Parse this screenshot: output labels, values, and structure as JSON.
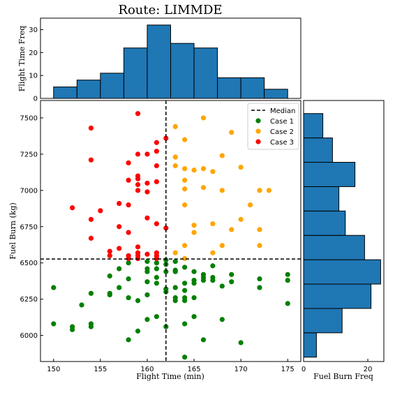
{
  "chart_data": {
    "type": "scatter",
    "title": "Route: LIMMDE",
    "xlabel": "Flight Time (min)",
    "ylabel": "Fuel Burn (kg)",
    "xlim": [
      148.6,
      176.4
    ],
    "ylim": [
      5820,
      7620
    ],
    "xticks": [
      150,
      155,
      160,
      165,
      170,
      175
    ],
    "yticks": [
      6000,
      6250,
      6500,
      6750,
      7000,
      7250,
      7500
    ],
    "median_x": 162,
    "median_y": 6527,
    "legend_position": "top-right",
    "median_label": "Median",
    "series": [
      {
        "name": "Case 1",
        "color": "#008000",
        "points": [
          [
            150,
            6330
          ],
          [
            150,
            6080
          ],
          [
            152,
            6060
          ],
          [
            152,
            6040
          ],
          [
            153,
            6210
          ],
          [
            154,
            6290
          ],
          [
            154,
            6080
          ],
          [
            154,
            6060
          ],
          [
            156,
            6410
          ],
          [
            156,
            6290
          ],
          [
            156,
            6280
          ],
          [
            157,
            6460
          ],
          [
            157,
            6330
          ],
          [
            158,
            6500
          ],
          [
            158,
            6390
          ],
          [
            158,
            6260
          ],
          [
            158,
            5970
          ],
          [
            159,
            6240
          ],
          [
            159,
            6030
          ],
          [
            160,
            6510
          ],
          [
            160,
            6460
          ],
          [
            160,
            6440
          ],
          [
            160,
            6370
          ],
          [
            160,
            6280
          ],
          [
            160,
            6110
          ],
          [
            161,
            6500
          ],
          [
            161,
            6460
          ],
          [
            161,
            6400
          ],
          [
            161,
            6360
          ],
          [
            161,
            6130
          ],
          [
            162,
            6520
          ],
          [
            162,
            6490
          ],
          [
            162,
            6440
          ],
          [
            162,
            6320
          ],
          [
            162,
            6300
          ],
          [
            162,
            6060
          ],
          [
            163,
            6510
          ],
          [
            163,
            6450
          ],
          [
            163,
            6440
          ],
          [
            163,
            6330
          ],
          [
            163,
            6260
          ],
          [
            163,
            6240
          ],
          [
            164,
            6470
          ],
          [
            164,
            6360
          ],
          [
            164,
            6310
          ],
          [
            164,
            6260
          ],
          [
            164,
            6240
          ],
          [
            164,
            6080
          ],
          [
            164,
            5850
          ],
          [
            165,
            6440
          ],
          [
            165,
            6380
          ],
          [
            165,
            6360
          ],
          [
            165,
            6260
          ],
          [
            165,
            6130
          ],
          [
            166,
            6420
          ],
          [
            166,
            6400
          ],
          [
            166,
            6380
          ],
          [
            166,
            5970
          ],
          [
            167,
            6480
          ],
          [
            167,
            6400
          ],
          [
            167,
            6380
          ],
          [
            168,
            6340
          ],
          [
            168,
            6110
          ],
          [
            169,
            6420
          ],
          [
            169,
            6370
          ],
          [
            170,
            5950
          ],
          [
            172,
            6390
          ],
          [
            172,
            6330
          ],
          [
            175,
            6420
          ],
          [
            175,
            6380
          ],
          [
            175,
            6220
          ]
        ]
      },
      {
        "name": "Case 2",
        "color": "#ffa500",
        "points": [
          [
            163,
            7440
          ],
          [
            163,
            7230
          ],
          [
            163,
            7170
          ],
          [
            163,
            6570
          ],
          [
            164,
            7350
          ],
          [
            164,
            7150
          ],
          [
            164,
            7070
          ],
          [
            164,
            7010
          ],
          [
            164,
            6900
          ],
          [
            164,
            6620
          ],
          [
            164,
            6530
          ],
          [
            165,
            7140
          ],
          [
            165,
            6760
          ],
          [
            165,
            6710
          ],
          [
            166,
            7500
          ],
          [
            166,
            7150
          ],
          [
            166,
            7020
          ],
          [
            167,
            7130
          ],
          [
            167,
            6770
          ],
          [
            167,
            6570
          ],
          [
            168,
            7240
          ],
          [
            168,
            7000
          ],
          [
            168,
            6620
          ],
          [
            169,
            7400
          ],
          [
            169,
            6730
          ],
          [
            170,
            7160
          ],
          [
            170,
            6800
          ],
          [
            171,
            6900
          ],
          [
            172,
            7000
          ],
          [
            172,
            6730
          ],
          [
            172,
            6620
          ],
          [
            173,
            7000
          ]
        ]
      },
      {
        "name": "Case 3",
        "color": "#ff0000",
        "points": [
          [
            152,
            6880
          ],
          [
            154,
            7430
          ],
          [
            154,
            7210
          ],
          [
            154,
            6800
          ],
          [
            154,
            6670
          ],
          [
            155,
            6860
          ],
          [
            156,
            6580
          ],
          [
            156,
            6550
          ],
          [
            157,
            6910
          ],
          [
            157,
            6750
          ],
          [
            157,
            6600
          ],
          [
            158,
            7190
          ],
          [
            158,
            7070
          ],
          [
            158,
            6900
          ],
          [
            158,
            6710
          ],
          [
            158,
            6550
          ],
          [
            158,
            6530
          ],
          [
            159,
            7530
          ],
          [
            159,
            7250
          ],
          [
            159,
            7100
          ],
          [
            159,
            7080
          ],
          [
            159,
            7040
          ],
          [
            159,
            7000
          ],
          [
            159,
            6610
          ],
          [
            159,
            6570
          ],
          [
            159,
            6550
          ],
          [
            159,
            6530
          ],
          [
            160,
            7250
          ],
          [
            160,
            7050
          ],
          [
            160,
            6990
          ],
          [
            160,
            6810
          ],
          [
            160,
            6560
          ],
          [
            161,
            7330
          ],
          [
            161,
            7270
          ],
          [
            161,
            7170
          ],
          [
            161,
            7060
          ],
          [
            161,
            6770
          ],
          [
            161,
            6570
          ],
          [
            161,
            6550
          ],
          [
            161,
            6530
          ],
          [
            162,
            7360
          ],
          [
            162,
            6740
          ]
        ]
      }
    ],
    "top_hist": {
      "ylabel": "Flight Time Freq",
      "yticks": [
        0,
        10,
        20,
        30
      ],
      "ylim": [
        0,
        35
      ],
      "bin_edges": [
        150,
        152.5,
        155,
        157.5,
        160,
        162.5,
        165,
        167.5,
        170,
        172.5,
        175
      ],
      "counts": [
        5,
        8,
        11,
        22,
        32,
        24,
        22,
        9,
        9,
        4
      ],
      "color": "#1f77b4"
    },
    "right_hist": {
      "xlabel": "Fuel Burn Freq",
      "xticks": [
        0,
        20
      ],
      "xlim": [
        0,
        25
      ],
      "bin_edges": [
        5850,
        6018,
        6186,
        6354,
        6522,
        6690,
        6858,
        7026,
        7194,
        7362,
        7530
      ],
      "counts": [
        4,
        12,
        21,
        24,
        19,
        13,
        11,
        16,
        9,
        6
      ],
      "color": "#1f77b4"
    }
  }
}
